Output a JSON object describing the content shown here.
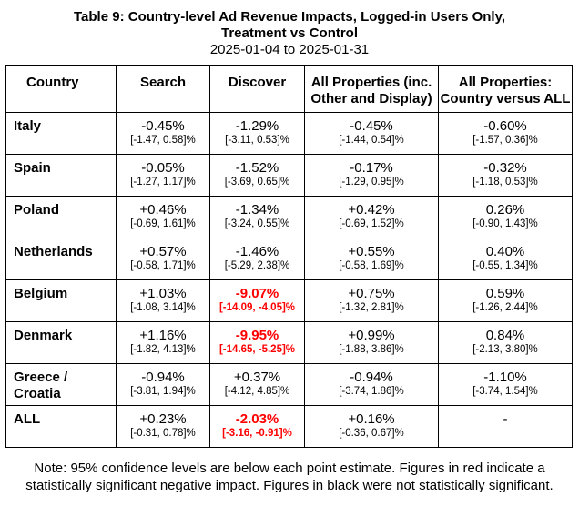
{
  "title": {
    "line1": "Table 9: Country-level Ad Revenue Impacts, Logged-in Users Only,",
    "line2": "Treatment vs Control",
    "date_range": "2025-01-04 to 2025-01-31"
  },
  "columns": [
    "Country",
    "Search",
    "Discover",
    "All Properties (inc. Other and Display)",
    "All Properties: Country versus ALL"
  ],
  "rows": [
    {
      "country": "Italy",
      "search": {
        "pt": "-0.45%",
        "ci": "[-1.47, 0.58]%"
      },
      "discover": {
        "pt": "-1.29%",
        "ci": "[-3.11, 0.53]%"
      },
      "all": {
        "pt": "-0.45%",
        "ci": "[-1.44, 0.54]%"
      },
      "vs": {
        "pt": "-0.60%",
        "ci": "[-1.57, 0.36]%"
      }
    },
    {
      "country": "Spain",
      "search": {
        "pt": "-0.05%",
        "ci": "[-1.27, 1.17]%"
      },
      "discover": {
        "pt": "-1.52%",
        "ci": "[-3.69, 0.65]%"
      },
      "all": {
        "pt": "-0.17%",
        "ci": "[-1.29, 0.95]%"
      },
      "vs": {
        "pt": "-0.32%",
        "ci": "[-1.18, 0.53]%"
      }
    },
    {
      "country": "Poland",
      "search": {
        "pt": "+0.46%",
        "ci": "[-0.69, 1.61]%"
      },
      "discover": {
        "pt": "-1.34%",
        "ci": "[-3.24, 0.55]%"
      },
      "all": {
        "pt": "+0.42%",
        "ci": "[-0.69, 1.52]%"
      },
      "vs": {
        "pt": "0.26%",
        "ci": "[-0.90, 1.43]%"
      }
    },
    {
      "country": "Netherlands",
      "search": {
        "pt": "+0.57%",
        "ci": "[-0.58, 1.71]%"
      },
      "discover": {
        "pt": "-1.46%",
        "ci": "[-5.29, 2.38]%"
      },
      "all": {
        "pt": "+0.55%",
        "ci": "[-0.58, 1.69]%"
      },
      "vs": {
        "pt": "0.40%",
        "ci": "[-0.55, 1.34]%"
      }
    },
    {
      "country": "Belgium",
      "search": {
        "pt": "+1.03%",
        "ci": "[-1.08, 3.14]%"
      },
      "discover": {
        "pt": "-9.07%",
        "ci": "[-14.09, -4.05]%"
      },
      "all": {
        "pt": "+0.75%",
        "ci": "[-1.32, 2.81]%"
      },
      "vs": {
        "pt": "0.59%",
        "ci": "[-1.26, 2.44]%"
      }
    },
    {
      "country": "Denmark",
      "search": {
        "pt": "+1.16%",
        "ci": "[-1.82, 4.13]%"
      },
      "discover": {
        "pt": "-9.95%",
        "ci": "[-14.65, -5.25]%"
      },
      "all": {
        "pt": "+0.99%",
        "ci": "[-1.88, 3.86]%"
      },
      "vs": {
        "pt": "0.84%",
        "ci": "[-2.13, 3.80]%"
      }
    },
    {
      "country": "Greece / Croatia",
      "search": {
        "pt": "-0.94%",
        "ci": "[-3.81, 1.94]%"
      },
      "discover": {
        "pt": "+0.37%",
        "ci": "[-4.12, 4.85]%"
      },
      "all": {
        "pt": "-0.94%",
        "ci": "[-3.74, 1.86]%"
      },
      "vs": {
        "pt": "-1.10%",
        "ci": "[-3.74, 1.54]%"
      }
    },
    {
      "country": "ALL",
      "search": {
        "pt": "+0.23%",
        "ci": "[-0.31, 0.78]%"
      },
      "discover": {
        "pt": "-2.03%",
        "ci": "[-3.16, -0.91]%"
      },
      "all": {
        "pt": "+0.16%",
        "ci": "[-0.36, 0.67]%"
      },
      "vs": {
        "pt": "-",
        "ci": ""
      }
    }
  ],
  "note": {
    "line1": "Note: 95% confidence levels are below each point estimate.  Figures in red indicate a",
    "line2": "statistically significant negative impact.  Figures in black were not statistically significant."
  },
  "colors": {
    "significant": "#ff0000",
    "text": "#000000"
  }
}
